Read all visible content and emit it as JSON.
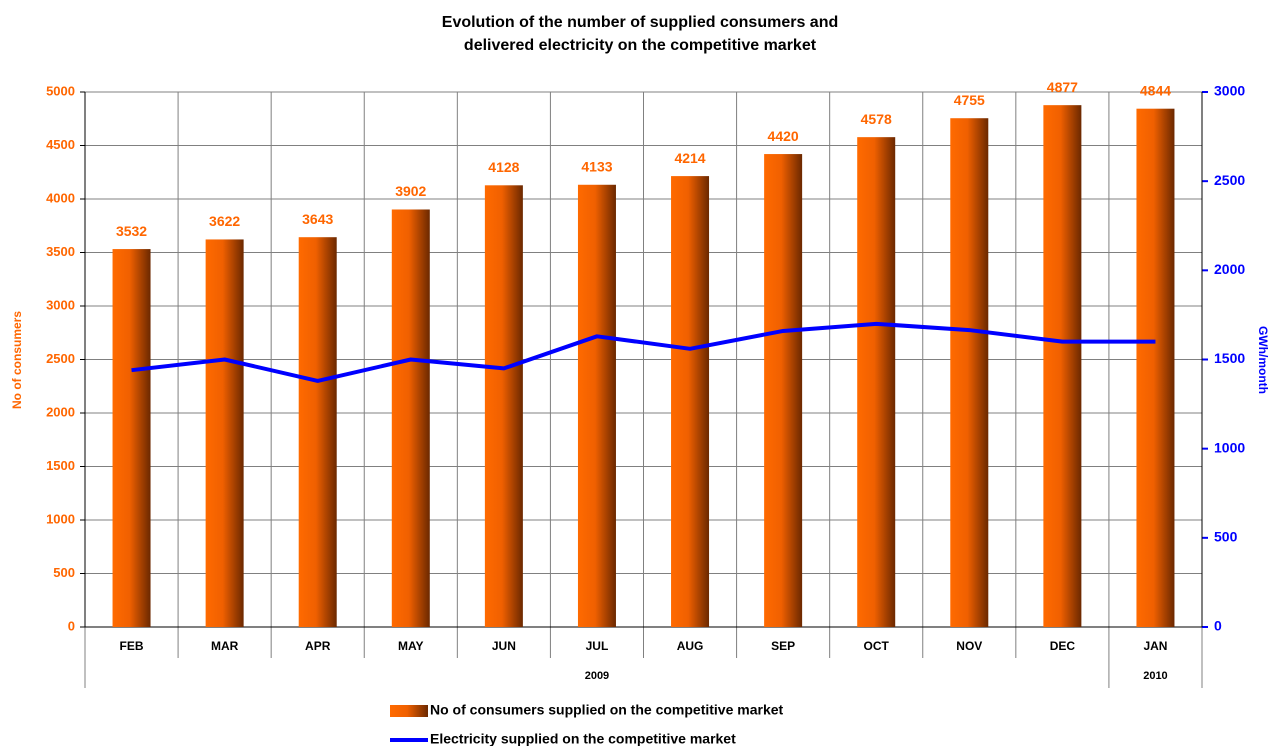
{
  "chart_data": {
    "type": "bar",
    "title": [
      "Evolution of the number of supplied consumers and",
      "delivered electricity  on the competitive market"
    ],
    "ylabel": "No of consumers",
    "y2label": "GWh/month",
    "categories": [
      "FEB",
      "MAR",
      "APR",
      "MAY",
      "JUN",
      "JUL",
      "AUG",
      "SEP",
      "OCT",
      "NOV",
      "DEC",
      "JAN"
    ],
    "groups": [
      {
        "label": "2009",
        "count": 11
      },
      {
        "label": "2010",
        "count": 1
      }
    ],
    "series": [
      {
        "name": "No of  consumers supplied on the competitive market",
        "type": "bar",
        "color": "#ff6600",
        "values": [
          3532,
          3622,
          3643,
          3902,
          4128,
          4133,
          4214,
          4420,
          4578,
          4755,
          4877,
          4844
        ]
      },
      {
        "name": "Electricity supplied on the competitive market",
        "type": "line",
        "axis": "y2",
        "color": "#0000ff",
        "values": [
          1440,
          1500,
          1380,
          1500,
          1450,
          1630,
          1560,
          1660,
          1700,
          1665,
          1600,
          1600
        ]
      }
    ],
    "ylim": [
      0,
      5000
    ],
    "yticks": [
      0,
      500,
      1000,
      1500,
      2000,
      2500,
      3000,
      3500,
      4000,
      4500,
      5000
    ],
    "y2lim": [
      0,
      3000
    ],
    "y2ticks": [
      0,
      500,
      1000,
      1500,
      2000,
      2500,
      3000
    ],
    "grid": true,
    "legend": "bottom"
  }
}
